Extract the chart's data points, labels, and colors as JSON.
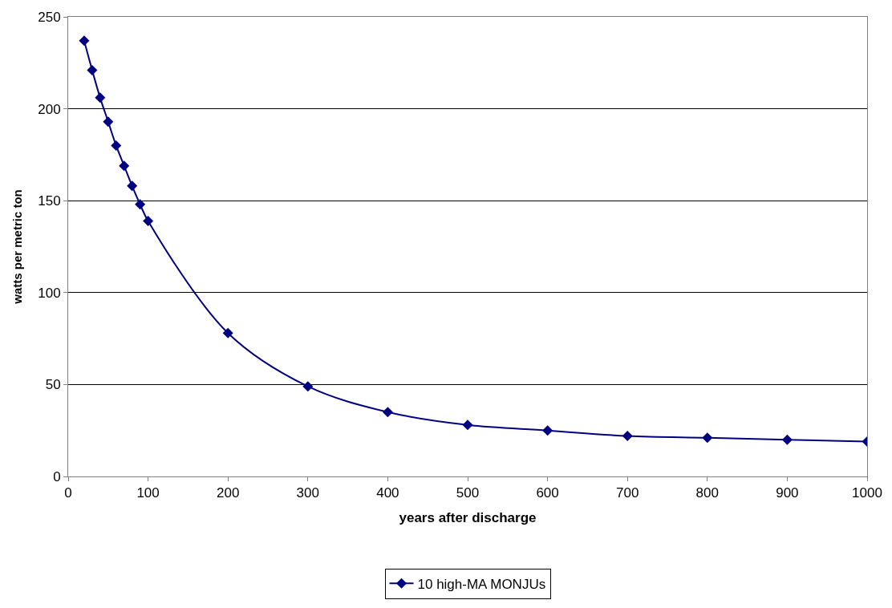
{
  "chart_data": {
    "type": "line",
    "xlabel": "years after discharge",
    "ylabel": "watts per metric ton",
    "x": [
      20,
      30,
      40,
      50,
      60,
      70,
      80,
      90,
      100,
      200,
      300,
      400,
      500,
      600,
      700,
      800,
      900,
      1000
    ],
    "series": [
      {
        "name": "10 high-MA MONJUs",
        "color": "#000080",
        "values": [
          237,
          221,
          206,
          193,
          180,
          169,
          158,
          148,
          139,
          78,
          49,
          35,
          28,
          25,
          22,
          21,
          20,
          19
        ]
      }
    ],
    "xlim": [
      0,
      1000
    ],
    "xticks": [
      0,
      100,
      200,
      300,
      400,
      500,
      600,
      700,
      800,
      900,
      1000
    ],
    "ylim": [
      0,
      250
    ],
    "yticks": [
      0,
      50,
      100,
      150,
      200,
      250
    ],
    "grid": "y",
    "legend": "bottom",
    "marker": "diamond",
    "line_style": "solid"
  }
}
